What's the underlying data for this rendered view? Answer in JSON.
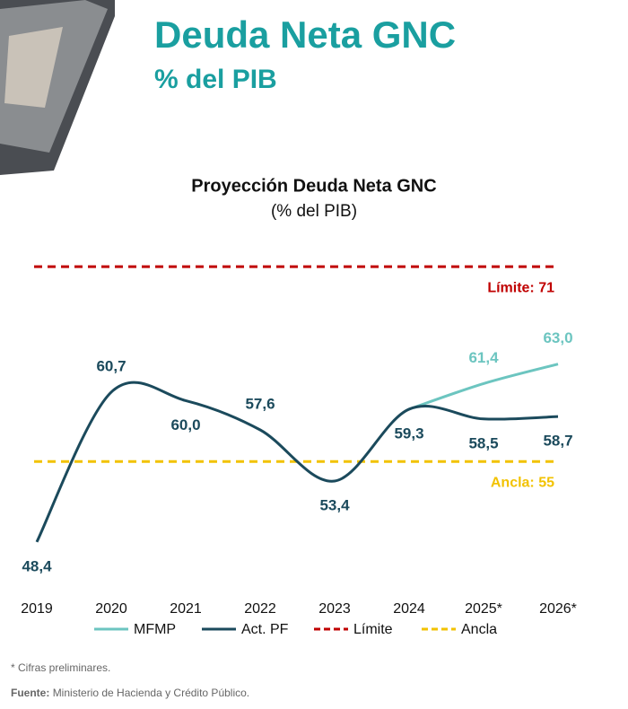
{
  "header": {
    "title": "Deuda Neta GNC",
    "subtitle": "% del PIB"
  },
  "chart_data": {
    "type": "line",
    "title": "Proyección Deuda Neta GNC",
    "subtitle": "(% del PIB)",
    "categories": [
      "2019",
      "2020",
      "2021",
      "2022",
      "2023",
      "2024",
      "2025*",
      "2026*"
    ],
    "series": [
      {
        "name": "MFMP",
        "color": "#6cc5c0",
        "values": [
          null,
          null,
          null,
          null,
          null,
          59.3,
          61.4,
          63.0
        ],
        "value_labels": [
          null,
          null,
          null,
          null,
          null,
          null,
          "61,4",
          "63,0"
        ]
      },
      {
        "name": "Act. PF",
        "color": "#1b4a5c",
        "values": [
          48.4,
          60.7,
          60.0,
          57.6,
          53.4,
          59.3,
          58.5,
          58.7
        ],
        "value_labels": [
          "48,4",
          "60,7",
          "60,0",
          "57,6",
          "53,4",
          "59,3",
          "58,5",
          "58,7"
        ]
      }
    ],
    "reference_lines": [
      {
        "name": "Límite",
        "value": 71,
        "label": "Límite: 71",
        "color": "#c00000"
      },
      {
        "name": "Ancla",
        "value": 55,
        "label": "Ancla: 55",
        "color": "#f2c200"
      }
    ],
    "ylim": [
      45,
      73
    ],
    "grid": false
  },
  "footer": {
    "note": "* Cifras preliminares.",
    "source_label": "Fuente:",
    "source": "Ministerio de Hacienda y Crédito Público."
  }
}
